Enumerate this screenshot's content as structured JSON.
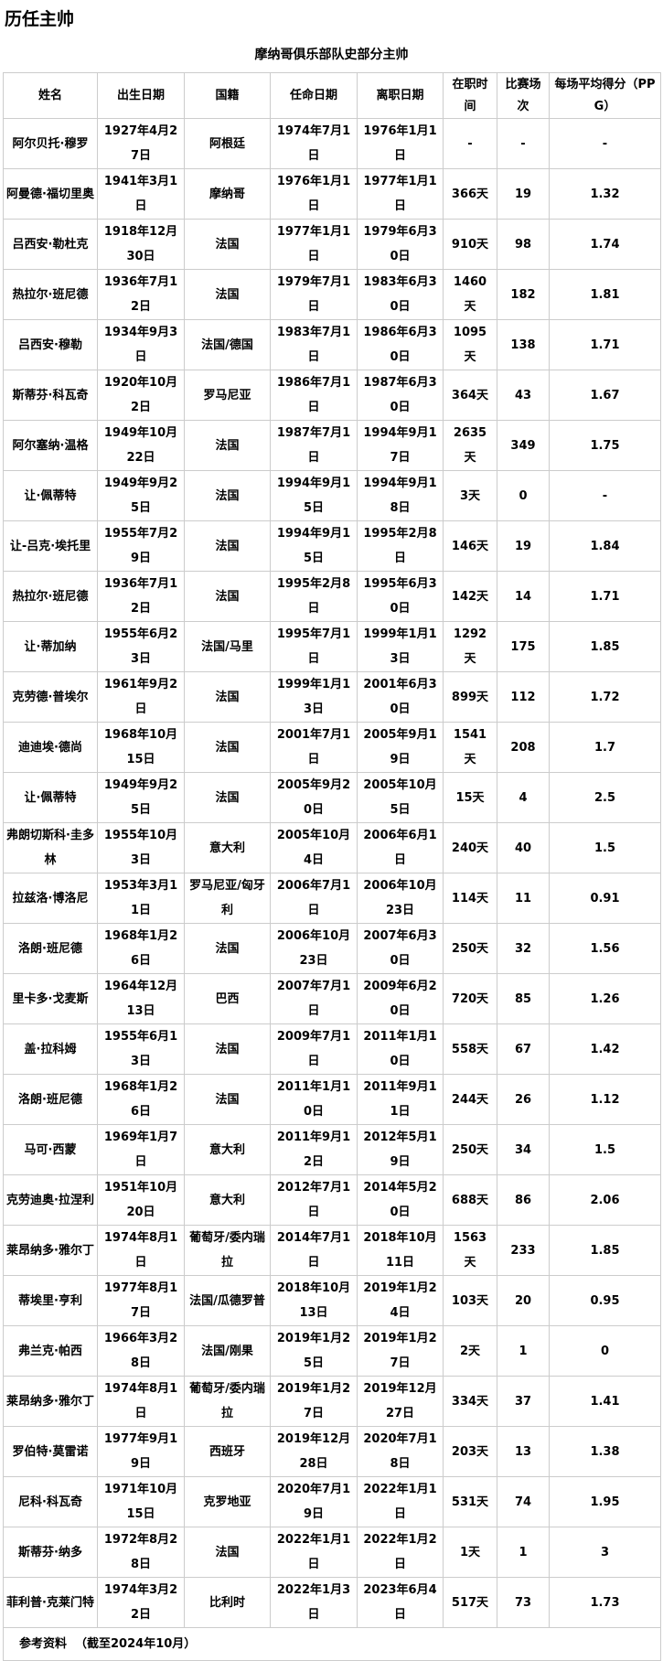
{
  "page": {
    "title": "历任主帅"
  },
  "table": {
    "caption": "摩纳哥俱乐部队史部分主帅",
    "columns": [
      "姓名",
      "出生日期",
      "国籍",
      "任命日期",
      "离职日期",
      "在职时间",
      "比赛场次",
      "每场平均得分（PPG）"
    ],
    "rows": [
      [
        "阿尔贝托·穆罗",
        "1927年4月27日",
        "阿根廷",
        "1974年7月1日",
        "1976年1月1日",
        "-",
        "-",
        "-"
      ],
      [
        "阿曼德·福切里奥",
        "1941年3月1日",
        "摩纳哥",
        "1976年1月1日",
        "1977年1月1日",
        "366天",
        "19",
        "1.32"
      ],
      [
        "吕西安·勒杜克",
        "1918年12月30日",
        "法国",
        "1977年1月1日",
        "1979年6月30日",
        "910天",
        "98",
        "1.74"
      ],
      [
        "热拉尔·班尼德",
        "1936年7月12日",
        "法国",
        "1979年7月1日",
        "1983年6月30日",
        "1460天",
        "182",
        "1.81"
      ],
      [
        "吕西安·穆勒",
        "1934年9月3日",
        "法国/德国",
        "1983年7月1日",
        "1986年6月30日",
        "1095天",
        "138",
        "1.71"
      ],
      [
        "斯蒂芬·科瓦奇",
        "1920年10月2日",
        "罗马尼亚",
        "1986年7月1日",
        "1987年6月30日",
        "364天",
        "43",
        "1.67"
      ],
      [
        "阿尔塞纳·温格",
        "1949年10月22日",
        "法国",
        "1987年7月1日",
        "1994年9月17日",
        "2635天",
        "349",
        "1.75"
      ],
      [
        "让·佩蒂特",
        "1949年9月25日",
        "法国",
        "1994年9月15日",
        "1994年9月18日",
        "3天",
        "0",
        "-"
      ],
      [
        "让-吕克·埃托里",
        "1955年7月29日",
        "法国",
        "1994年9月15日",
        "1995年2月8日",
        "146天",
        "19",
        "1.84"
      ],
      [
        "热拉尔·班尼德",
        "1936年7月12日",
        "法国",
        "1995年2月8日",
        "1995年6月30日",
        "142天",
        "14",
        "1.71"
      ],
      [
        "让·蒂加纳",
        "1955年6月23日",
        "法国/马里",
        "1995年7月1日",
        "1999年1月13日",
        "1292天",
        "175",
        "1.85"
      ],
      [
        "克劳德·普埃尔",
        "1961年9月2日",
        "法国",
        "1999年1月13日",
        "2001年6月30日",
        "899天",
        "112",
        "1.72"
      ],
      [
        "迪迪埃·德尚",
        "1968年10月15日",
        "法国",
        "2001年7月1日",
        "2005年9月19日",
        "1541天",
        "208",
        "1.7"
      ],
      [
        "让·佩蒂特",
        "1949年9月25日",
        "法国",
        "2005年9月20日",
        "2005年10月5日",
        "15天",
        "4",
        "2.5"
      ],
      [
        "弗朗切斯科·圭多林",
        "1955年10月3日",
        "意大利",
        "2005年10月4日",
        "2006年6月1日",
        "240天",
        "40",
        "1.5"
      ],
      [
        "拉兹洛·博洛尼",
        "1953年3月11日",
        "罗马尼亚/匈牙利",
        "2006年7月1日",
        "2006年10月23日",
        "114天",
        "11",
        "0.91"
      ],
      [
        "洛朗·班尼德",
        "1968年1月26日",
        "法国",
        "2006年10月23日",
        "2007年6月30日",
        "250天",
        "32",
        "1.56"
      ],
      [
        "里卡多·戈麦斯",
        "1964年12月13日",
        "巴西",
        "2007年7月1日",
        "2009年6月20日",
        "720天",
        "85",
        "1.26"
      ],
      [
        "盖·拉科姆",
        "1955年6月13日",
        "法国",
        "2009年7月1日",
        "2011年1月10日",
        "558天",
        "67",
        "1.42"
      ],
      [
        "洛朗·班尼德",
        "1968年1月26日",
        "法国",
        "2011年1月10日",
        "2011年9月11日",
        "244天",
        "26",
        "1.12"
      ],
      [
        "马可·西蒙",
        "1969年1月7日",
        "意大利",
        "2011年9月12日",
        "2012年5月19日",
        "250天",
        "34",
        "1.5"
      ],
      [
        "克劳迪奥·拉涅利",
        "1951年10月20日",
        "意大利",
        "2012年7月1日",
        "2014年5月20日",
        "688天",
        "86",
        "2.06"
      ],
      [
        "莱昂纳多·雅尔丁",
        "1974年8月1日",
        "葡萄牙/委内瑞拉",
        "2014年7月1日",
        "2018年10月11日",
        "1563天",
        "233",
        "1.85"
      ],
      [
        "蒂埃里·亨利",
        "1977年8月17日",
        "法国/瓜德罗普",
        "2018年10月13日",
        "2019年1月24日",
        "103天",
        "20",
        "0.95"
      ],
      [
        "弗兰克·帕西",
        "1966年3月28日",
        "法国/刚果",
        "2019年1月25日",
        "2019年1月27日",
        "2天",
        "1",
        "0"
      ],
      [
        "莱昂纳多·雅尔丁",
        "1974年8月1日",
        "葡萄牙/委内瑞拉",
        "2019年1月27日",
        "2019年12月27日",
        "334天",
        "37",
        "1.41"
      ],
      [
        "罗伯特·莫雷诺",
        "1977年9月19日",
        "西班牙",
        "2019年12月28日",
        "2020年7月18日",
        "203天",
        "13",
        "1.38"
      ],
      [
        "尼科·科瓦奇",
        "1971年10月15日",
        "克罗地亚",
        "2020年7月19日",
        "2022年1月1日",
        "531天",
        "74",
        "1.95"
      ],
      [
        "斯蒂芬·纳多",
        "1972年8月28日",
        "法国",
        "2022年1月1日",
        "2022年1月2日",
        "1天",
        "1",
        "3"
      ],
      [
        "菲利普·克莱门特",
        "1974年3月22日",
        "比利时",
        "2022年1月3日",
        "2023年6月4日",
        "517天",
        "73",
        "1.73"
      ]
    ],
    "footer": {
      "label": "参考资料",
      "note": "（截至2024年10月）"
    }
  }
}
